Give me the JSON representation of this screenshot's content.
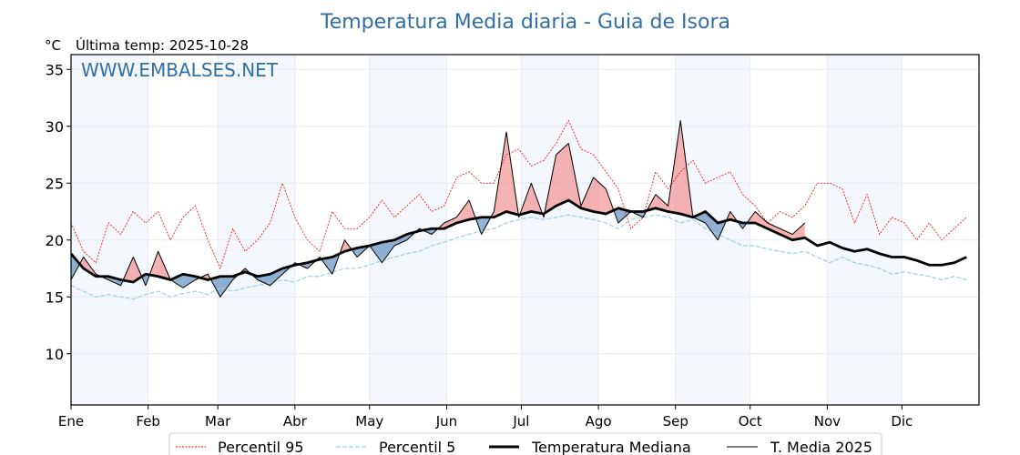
{
  "chart_data": {
    "type": "line",
    "title": "Temperatura Media diaria - Guia de Isora",
    "ylabel": "°C",
    "subtitle": "Última temp: 2025-10-28",
    "watermark": "WWW.EMBALSES.NET",
    "ylim": [
      5.5,
      36.3
    ],
    "xlim_days": [
      0,
      365
    ],
    "yticks": [
      10,
      15,
      20,
      25,
      30,
      35
    ],
    "xticks": [
      {
        "label": "Ene",
        "day": 0
      },
      {
        "label": "Feb",
        "day": 31
      },
      {
        "label": "Mar",
        "day": 59
      },
      {
        "label": "Abr",
        "day": 90
      },
      {
        "label": "May",
        "day": 120
      },
      {
        "label": "Jun",
        "day": 151
      },
      {
        "label": "Jul",
        "day": 181
      },
      {
        "label": "Ago",
        "day": 212
      },
      {
        "label": "Sep",
        "day": 243
      },
      {
        "label": "Oct",
        "day": 273
      },
      {
        "label": "Nov",
        "day": 304
      },
      {
        "label": "Dic",
        "day": 334
      }
    ],
    "grid": true,
    "legend_position": "bottom-center",
    "sample_step_days": 5,
    "series": [
      {
        "name": "Percentil 95",
        "style": "dotted",
        "color": "#ff0000",
        "values": [
          21.5,
          19.0,
          18.0,
          21.5,
          20.5,
          22.5,
          21.5,
          22.5,
          20.0,
          22.0,
          23.0,
          20.0,
          17.5,
          21.0,
          19.0,
          20.0,
          21.5,
          25.0,
          22.0,
          20.0,
          19.0,
          22.5,
          21.0,
          21.0,
          22.0,
          23.5,
          22.0,
          23.0,
          24.0,
          22.5,
          23.0,
          25.5,
          26.0,
          25.0,
          25.0,
          27.5,
          28.0,
          26.5,
          27.0,
          28.5,
          30.5,
          28.0,
          27.5,
          26.0,
          24.5,
          21.0,
          22.0,
          26.0,
          24.5,
          26.0,
          27.0,
          25.0,
          25.5,
          26.0,
          24.0,
          23.0,
          21.5,
          22.5,
          22.0,
          23.0,
          25.0,
          25.0,
          24.5,
          21.5,
          24.0,
          20.5,
          22.0,
          21.5,
          20.0,
          21.5,
          20.0,
          21.0,
          22.0
        ]
      },
      {
        "name": "Percentil 5",
        "style": "dashed",
        "color": "#9fd0e3",
        "values": [
          16.0,
          15.5,
          15.0,
          15.2,
          15.0,
          14.8,
          15.2,
          15.5,
          15.0,
          15.3,
          15.5,
          15.2,
          15.8,
          15.5,
          15.8,
          16.0,
          16.2,
          16.5,
          16.3,
          16.8,
          16.8,
          17.2,
          17.5,
          17.5,
          17.8,
          18.2,
          18.5,
          18.8,
          19.0,
          19.5,
          19.8,
          20.2,
          20.5,
          20.8,
          21.0,
          21.5,
          21.8,
          22.0,
          21.8,
          22.0,
          22.2,
          22.0,
          21.8,
          21.5,
          21.0,
          21.8,
          22.0,
          22.2,
          22.0,
          21.5,
          21.8,
          21.0,
          20.5,
          20.0,
          19.5,
          19.5,
          19.2,
          19.0,
          18.8,
          19.0,
          18.5,
          18.0,
          18.5,
          18.0,
          17.8,
          17.5,
          17.0,
          17.2,
          17.0,
          16.8,
          16.5,
          16.8,
          16.5
        ]
      },
      {
        "name": "Temperatura Mediana",
        "style": "solid-thick",
        "color": "#000000",
        "values": [
          18.8,
          17.5,
          16.8,
          16.8,
          16.5,
          16.3,
          17.0,
          16.8,
          16.5,
          17.0,
          16.8,
          16.5,
          16.8,
          16.8,
          17.2,
          16.8,
          17.0,
          17.5,
          17.8,
          18.0,
          18.3,
          18.5,
          19.0,
          19.3,
          19.5,
          19.8,
          20.0,
          20.5,
          20.8,
          21.0,
          21.0,
          21.5,
          21.8,
          22.0,
          22.0,
          22.5,
          22.2,
          22.5,
          22.3,
          23.0,
          23.5,
          22.8,
          22.5,
          22.3,
          22.8,
          22.5,
          22.5,
          22.8,
          22.5,
          22.3,
          22.0,
          22.5,
          21.5,
          21.8,
          21.5,
          21.5,
          21.0,
          20.5,
          20.0,
          20.2,
          19.5,
          19.8,
          19.3,
          19.0,
          19.2,
          18.8,
          18.5,
          18.5,
          18.2,
          17.8,
          17.8,
          18.0,
          18.5
        ]
      },
      {
        "name": "T. Media 2025",
        "style": "solid-thin",
        "color": "#000000",
        "values": [
          16.5,
          18.5,
          17.0,
          16.5,
          16.0,
          18.5,
          16.0,
          19.0,
          16.5,
          15.8,
          16.5,
          17.0,
          15.0,
          16.5,
          17.5,
          16.5,
          16.0,
          17.0,
          18.0,
          17.5,
          18.5,
          17.0,
          20.0,
          18.5,
          19.5,
          18.0,
          19.5,
          20.0,
          21.0,
          20.5,
          21.5,
          22.0,
          23.5,
          20.5,
          22.5,
          29.5,
          22.0,
          25.0,
          22.0,
          27.5,
          28.5,
          23.0,
          25.5,
          24.5,
          21.5,
          22.5,
          22.0,
          24.0,
          23.0,
          30.5,
          22.0,
          21.5,
          20.0,
          22.5,
          21.0,
          22.5,
          21.5,
          21.0,
          20.5,
          21.5,
          null,
          null,
          null,
          null,
          null,
          null,
          null,
          null,
          null,
          null,
          null,
          null,
          null
        ]
      }
    ],
    "fill_above_median_color": "#f08080",
    "fill_below_median_color": "#4a7fb5"
  },
  "legend": {
    "items": [
      {
        "label": "Percentil 95"
      },
      {
        "label": "Percentil 5"
      },
      {
        "label": "Temperatura Mediana"
      },
      {
        "label": "T. Media 2025"
      }
    ]
  }
}
